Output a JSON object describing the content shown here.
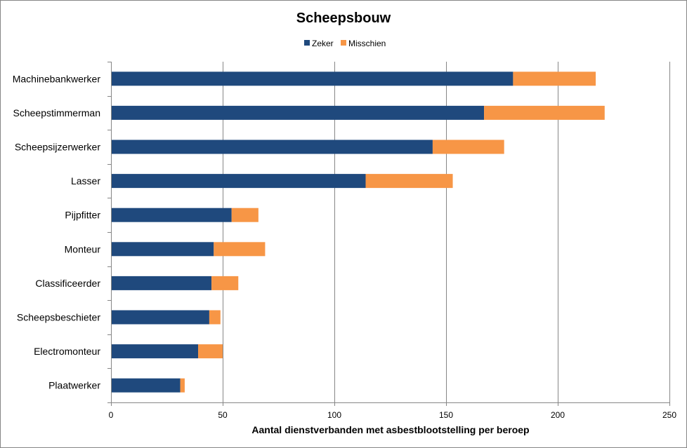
{
  "chart_data": {
    "type": "bar",
    "orientation": "horizontal",
    "stacked": true,
    "title": "Scheepsbouw",
    "xlabel": "Aantal dienstverbanden met asbestblootstelling per beroep",
    "ylabel": "",
    "xlim": [
      0,
      250
    ],
    "xticks": [
      0,
      50,
      100,
      150,
      200,
      250
    ],
    "grid": "vertical",
    "legend": "top-center",
    "categories": [
      "Machinebankwerker",
      "Scheepstimmerman",
      "Scheepsijzerwerker",
      "Lasser",
      "Pijpfitter",
      "Monteur",
      "Classificeerder",
      "Scheepsbeschieter",
      "Electromonteur",
      "Plaatwerker"
    ],
    "series": [
      {
        "name": "Zeker",
        "color": "#1F497D",
        "values": [
          180,
          167,
          144,
          114,
          54,
          46,
          45,
          44,
          39,
          31
        ]
      },
      {
        "name": "Misschien",
        "color": "#F79646",
        "values": [
          37,
          54,
          32,
          39,
          12,
          23,
          12,
          5,
          11,
          2
        ]
      }
    ]
  }
}
